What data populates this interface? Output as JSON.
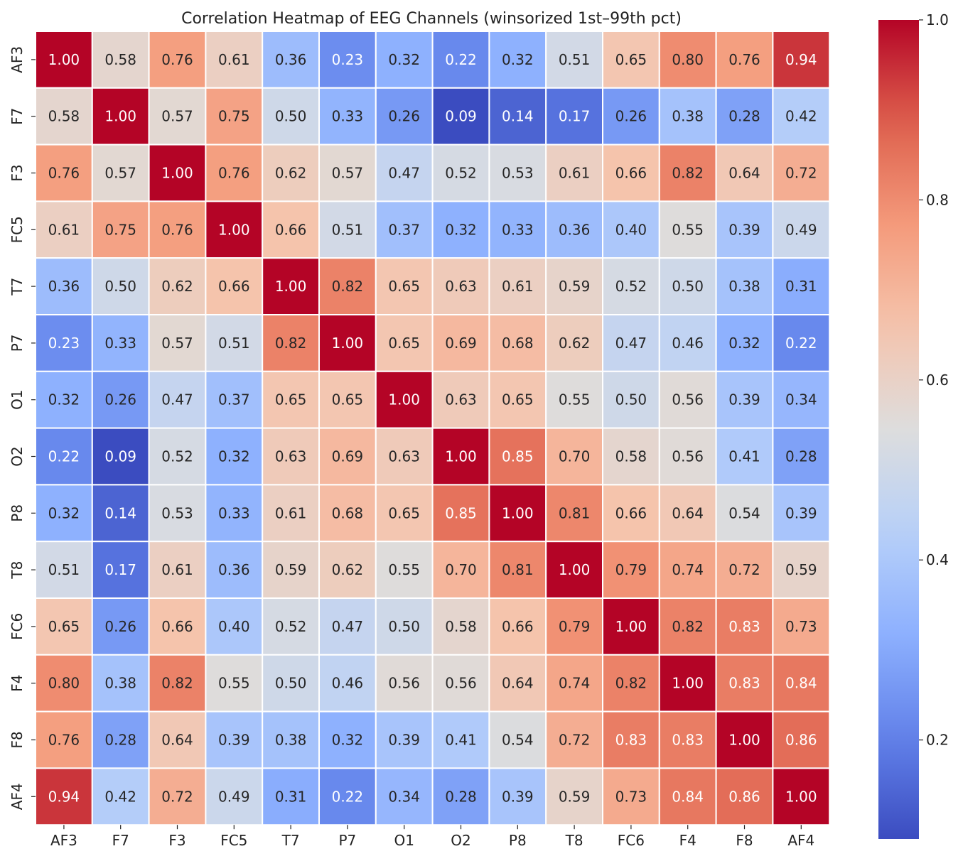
{
  "chart_data": {
    "type": "heatmap",
    "title": "Correlation Heatmap of EEG Channels (winsorized 1st–99th pct)",
    "xlabel": "",
    "ylabel": "",
    "x_categories": [
      "AF3",
      "F7",
      "F3",
      "FC5",
      "T7",
      "P7",
      "O1",
      "O2",
      "P8",
      "T8",
      "FC6",
      "F4",
      "F8",
      "AF4"
    ],
    "y_categories": [
      "AF3",
      "F7",
      "F3",
      "FC5",
      "T7",
      "P7",
      "O1",
      "O2",
      "P8",
      "T8",
      "FC6",
      "F4",
      "F8",
      "AF4"
    ],
    "values": [
      [
        1.0,
        0.58,
        0.76,
        0.61,
        0.36,
        0.23,
        0.32,
        0.22,
        0.32,
        0.51,
        0.65,
        0.8,
        0.76,
        0.94
      ],
      [
        0.58,
        1.0,
        0.57,
        0.75,
        0.5,
        0.33,
        0.26,
        0.09,
        0.14,
        0.17,
        0.26,
        0.38,
        0.28,
        0.42
      ],
      [
        0.76,
        0.57,
        1.0,
        0.76,
        0.62,
        0.57,
        0.47,
        0.52,
        0.53,
        0.61,
        0.66,
        0.82,
        0.64,
        0.72
      ],
      [
        0.61,
        0.75,
        0.76,
        1.0,
        0.66,
        0.51,
        0.37,
        0.32,
        0.33,
        0.36,
        0.4,
        0.55,
        0.39,
        0.49
      ],
      [
        0.36,
        0.5,
        0.62,
        0.66,
        1.0,
        0.82,
        0.65,
        0.63,
        0.61,
        0.59,
        0.52,
        0.5,
        0.38,
        0.31
      ],
      [
        0.23,
        0.33,
        0.57,
        0.51,
        0.82,
        1.0,
        0.65,
        0.69,
        0.68,
        0.62,
        0.47,
        0.46,
        0.32,
        0.22
      ],
      [
        0.32,
        0.26,
        0.47,
        0.37,
        0.65,
        0.65,
        1.0,
        0.63,
        0.65,
        0.55,
        0.5,
        0.56,
        0.39,
        0.34
      ],
      [
        0.22,
        0.09,
        0.52,
        0.32,
        0.63,
        0.69,
        0.63,
        1.0,
        0.85,
        0.7,
        0.58,
        0.56,
        0.41,
        0.28
      ],
      [
        0.32,
        0.14,
        0.53,
        0.33,
        0.61,
        0.68,
        0.65,
        0.85,
        1.0,
        0.81,
        0.66,
        0.64,
        0.54,
        0.39
      ],
      [
        0.51,
        0.17,
        0.61,
        0.36,
        0.59,
        0.62,
        0.55,
        0.7,
        0.81,
        1.0,
        0.79,
        0.74,
        0.72,
        0.59
      ],
      [
        0.65,
        0.26,
        0.66,
        0.4,
        0.52,
        0.47,
        0.5,
        0.58,
        0.66,
        0.79,
        1.0,
        0.82,
        0.83,
        0.73
      ],
      [
        0.8,
        0.38,
        0.82,
        0.55,
        0.5,
        0.46,
        0.56,
        0.56,
        0.64,
        0.74,
        0.82,
        1.0,
        0.83,
        0.84
      ],
      [
        0.76,
        0.28,
        0.64,
        0.39,
        0.38,
        0.32,
        0.39,
        0.41,
        0.54,
        0.72,
        0.83,
        0.83,
        1.0,
        0.86
      ],
      [
        0.94,
        0.42,
        0.72,
        0.49,
        0.31,
        0.22,
        0.34,
        0.28,
        0.39,
        0.59,
        0.73,
        0.84,
        0.86,
        1.0
      ]
    ],
    "colorscale": "coolwarm",
    "vmin": 0.09,
    "vmax": 1.0,
    "colorbar_ticks": [
      0.2,
      0.4,
      0.6,
      0.8,
      1.0
    ],
    "colorbar_tick_labels": [
      "0.2",
      "0.4",
      "0.6",
      "0.8",
      "1.0"
    ],
    "legend_position": "right",
    "annotations_format": "2 decimals",
    "grid_lines": "white"
  }
}
